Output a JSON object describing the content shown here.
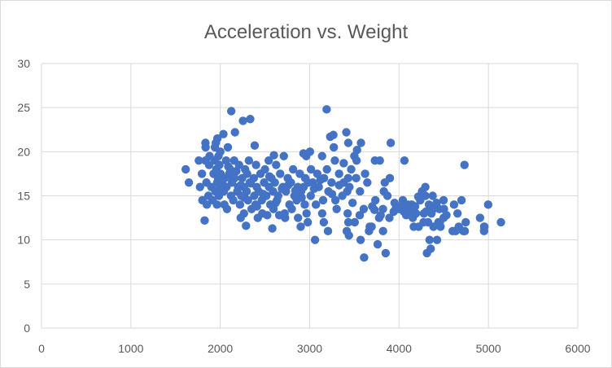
{
  "chart_data": {
    "type": "scatter",
    "title": "Acceleration vs. Weight",
    "xlabel": "",
    "ylabel": "",
    "xlim": [
      0,
      6000
    ],
    "ylim": [
      0,
      30
    ],
    "x_ticks": [
      "0",
      "1000",
      "2000",
      "3000",
      "4000",
      "5000",
      "6000"
    ],
    "y_ticks": [
      "0",
      "5",
      "10",
      "15",
      "20",
      "25",
      "30"
    ],
    "grid": true,
    "legend": "none",
    "marker_color": "#4472C4",
    "points": [
      [
        1613,
        18.0
      ],
      [
        1649,
        16.5
      ],
      [
        1760,
        19.0
      ],
      [
        1773,
        16.0
      ],
      [
        1795,
        17.5
      ],
      [
        1800,
        14.5
      ],
      [
        1825,
        12.2
      ],
      [
        1834,
        21.0
      ],
      [
        1835,
        19.0
      ],
      [
        1836,
        20.5
      ],
      [
        1845,
        16.5
      ],
      [
        1850,
        14.0
      ],
      [
        1867,
        15.0
      ],
      [
        1875,
        18.5
      ],
      [
        1880,
        19.5
      ],
      [
        1900,
        16.0
      ],
      [
        1915,
        14.5
      ],
      [
        1925,
        17.5
      ],
      [
        1937,
        19.0
      ],
      [
        1940,
        20.5
      ],
      [
        1945,
        15.5
      ],
      [
        1950,
        21.0
      ],
      [
        1955,
        18.0
      ],
      [
        1963,
        14.0
      ],
      [
        1965,
        16.5
      ],
      [
        1968,
        21.5
      ],
      [
        1975,
        17.0
      ],
      [
        1980,
        19.5
      ],
      [
        1985,
        15.0
      ],
      [
        1990,
        18.5
      ],
      [
        1995,
        16.0
      ],
      [
        2000,
        20.0
      ],
      [
        2003,
        17.5
      ],
      [
        2020,
        16.5
      ],
      [
        2035,
        22.0
      ],
      [
        2040,
        15.5
      ],
      [
        2045,
        14.0
      ],
      [
        2050,
        17.0
      ],
      [
        2065,
        19.0
      ],
      [
        2070,
        16.0
      ],
      [
        2075,
        13.5
      ],
      [
        2085,
        20.5
      ],
      [
        2100,
        17.5
      ],
      [
        2110,
        18.0
      ],
      [
        2120,
        15.0
      ],
      [
        2123,
        24.6
      ],
      [
        2130,
        16.5
      ],
      [
        2145,
        14.5
      ],
      [
        2155,
        19.0
      ],
      [
        2160,
        17.0
      ],
      [
        2164,
        22.2
      ],
      [
        2190,
        15.5
      ],
      [
        2200,
        16.0
      ],
      [
        2210,
        18.5
      ],
      [
        2220,
        14.0
      ],
      [
        2228,
        12.5
      ],
      [
        2234,
        15.0
      ],
      [
        2245,
        17.0
      ],
      [
        2254,
        23.5
      ],
      [
        2264,
        16.0
      ],
      [
        2265,
        13.0
      ],
      [
        2278,
        18.0
      ],
      [
        2288,
        11.6
      ],
      [
        2295,
        15.5
      ],
      [
        2300,
        17.5
      ],
      [
        2310,
        14.5
      ],
      [
        2320,
        19.0
      ],
      [
        2330,
        16.5
      ],
      [
        2335,
        23.7
      ],
      [
        2350,
        13.5
      ],
      [
        2375,
        17.0
      ],
      [
        2380,
        15.0
      ],
      [
        2385,
        20.7
      ],
      [
        2395,
        14.0
      ],
      [
        2400,
        18.5
      ],
      [
        2408,
        16.0
      ],
      [
        2420,
        12.5
      ],
      [
        2430,
        15.5
      ],
      [
        2450,
        17.5
      ],
      [
        2465,
        14.5
      ],
      [
        2470,
        13.0
      ],
      [
        2490,
        16.5
      ],
      [
        2500,
        18.0
      ],
      [
        2515,
        15.0
      ],
      [
        2525,
        12.8
      ],
      [
        2542,
        19.0
      ],
      [
        2545,
        16.0
      ],
      [
        2560,
        14.0
      ],
      [
        2572,
        17.0
      ],
      [
        2582,
        11.3
      ],
      [
        2590,
        15.5
      ],
      [
        2595,
        13.5
      ],
      [
        2600,
        19.6
      ],
      [
        2610,
        16.5
      ],
      [
        2625,
        18.5
      ],
      [
        2635,
        14.5
      ],
      [
        2648,
        15.0
      ],
      [
        2660,
        12.8
      ],
      [
        2670,
        17.5
      ],
      [
        2700,
        16.0
      ],
      [
        2711,
        19.5
      ],
      [
        2720,
        13.0
      ],
      [
        2725,
        12.5
      ],
      [
        2735,
        15.5
      ],
      [
        2755,
        17.0
      ],
      [
        2774,
        14.0
      ],
      [
        2790,
        16.5
      ],
      [
        2800,
        13.5
      ],
      [
        2815,
        18.0
      ],
      [
        2830,
        15.0
      ],
      [
        2855,
        14.5
      ],
      [
        2868,
        16.0
      ],
      [
        2870,
        12.5
      ],
      [
        2890,
        17.5
      ],
      [
        2900,
        11.5
      ],
      [
        2905,
        15.5
      ],
      [
        2930,
        19.8
      ],
      [
        2933,
        16.0
      ],
      [
        2945,
        14.0
      ],
      [
        2950,
        17.0
      ],
      [
        2962,
        19.5
      ],
      [
        2965,
        13.0
      ],
      [
        2979,
        12.0
      ],
      [
        2985,
        16.5
      ],
      [
        3003,
        20.0
      ],
      [
        3012,
        15.0
      ],
      [
        3015,
        18.0
      ],
      [
        3035,
        16.5
      ],
      [
        3060,
        10.0
      ],
      [
        3070,
        14.0
      ],
      [
        3085,
        17.5
      ],
      [
        3102,
        16.0
      ],
      [
        3139,
        19.5
      ],
      [
        3140,
        13.0
      ],
      [
        3150,
        14.5
      ],
      [
        3158,
        12.0
      ],
      [
        3160,
        17.0
      ],
      [
        3190,
        24.8
      ],
      [
        3193,
        18.0
      ],
      [
        3205,
        11.0
      ],
      [
        3210,
        15.5
      ],
      [
        3230,
        21.7
      ],
      [
        3245,
        16.5
      ],
      [
        3265,
        21.9
      ],
      [
        3270,
        20.5
      ],
      [
        3282,
        19.0
      ],
      [
        3288,
        14.5
      ],
      [
        3302,
        13.5
      ],
      [
        3329,
        17.5
      ],
      [
        3365,
        15.0
      ],
      [
        3380,
        16.5
      ],
      [
        3381,
        18.7
      ],
      [
        3410,
        22.2
      ],
      [
        3415,
        11.0
      ],
      [
        3420,
        15.5
      ],
      [
        3425,
        13.0
      ],
      [
        3430,
        17.0
      ],
      [
        3432,
        21.0
      ],
      [
        3433,
        12.0
      ],
      [
        3439,
        10.5
      ],
      [
        3445,
        16.0
      ],
      [
        3465,
        18.0
      ],
      [
        3500,
        19.5
      ],
      [
        3504,
        12.0
      ],
      [
        3520,
        17.0
      ],
      [
        3525,
        19.0
      ],
      [
        3530,
        20.2
      ],
      [
        3563,
        15.5
      ],
      [
        3570,
        10.0
      ],
      [
        3574,
        21.0
      ],
      [
        3605,
        13.5
      ],
      [
        3609,
        8.0
      ],
      [
        3620,
        17.5
      ],
      [
        3645,
        16.5
      ],
      [
        3664,
        11.0
      ],
      [
        3672,
        11.5
      ],
      [
        3693,
        11.5
      ],
      [
        3725,
        13.4
      ],
      [
        3730,
        19.0
      ],
      [
        3735,
        14.5
      ],
      [
        3761,
        9.5
      ],
      [
        3777,
        12.5
      ],
      [
        3785,
        19.0
      ],
      [
        3794,
        12.8
      ],
      [
        3820,
        13.5
      ],
      [
        3821,
        11.0
      ],
      [
        3830,
        15.5
      ],
      [
        3840,
        16.5
      ],
      [
        3850,
        8.5
      ],
      [
        3870,
        15.0
      ],
      [
        3892,
        12.5
      ],
      [
        3897,
        17.0
      ],
      [
        3907,
        21.0
      ],
      [
        3940,
        13.2
      ],
      [
        3962,
        13.5
      ],
      [
        4000,
        13.5
      ],
      [
        4036,
        14.0
      ],
      [
        4042,
        14.5
      ],
      [
        4054,
        13.2
      ],
      [
        4060,
        19.0
      ],
      [
        4082,
        13.0
      ],
      [
        4096,
        13.0
      ],
      [
        4098,
        14.0
      ],
      [
        4100,
        13.0
      ],
      [
        4129,
        13.0
      ],
      [
        4135,
        13.5
      ],
      [
        4140,
        13.7
      ],
      [
        4141,
        14.0
      ],
      [
        4154,
        12.5
      ],
      [
        4165,
        11.5
      ],
      [
        4190,
        13.0
      ],
      [
        4215,
        14.9
      ],
      [
        4220,
        11.5
      ],
      [
        4237,
        14.5
      ],
      [
        4257,
        15.5
      ],
      [
        4274,
        12.0
      ],
      [
        4278,
        13.0
      ],
      [
        4294,
        16.0
      ],
      [
        4295,
        15.0
      ],
      [
        4312,
        8.5
      ],
      [
        4325,
        12.0
      ],
      [
        4335,
        14.0
      ],
      [
        4341,
        10.0
      ],
      [
        4354,
        9.0
      ],
      [
        4363,
        13.0
      ],
      [
        4376,
        15.0
      ],
      [
        4382,
        13.5
      ],
      [
        4385,
        11.5
      ],
      [
        4425,
        10.0
      ],
      [
        4440,
        12.0
      ],
      [
        4450,
        13.5
      ],
      [
        4456,
        12.0
      ],
      [
        4464,
        11.5
      ],
      [
        4498,
        14.5
      ],
      [
        4499,
        12.5
      ],
      [
        4502,
        13.5
      ],
      [
        4600,
        11.0
      ],
      [
        4615,
        14.0
      ],
      [
        4633,
        11.0
      ],
      [
        4654,
        13.0
      ],
      [
        4668,
        11.5
      ],
      [
        4699,
        14.5
      ],
      [
        4720,
        11.0
      ],
      [
        4732,
        18.5
      ],
      [
        4735,
        11.0
      ],
      [
        4746,
        12.0
      ],
      [
        4906,
        12.5
      ],
      [
        4951,
        11.0
      ],
      [
        4952,
        11.5
      ],
      [
        4955,
        11.5
      ],
      [
        4997,
        14.0
      ],
      [
        5140,
        12.0
      ],
      [
        2005,
        15.8
      ],
      [
        2090,
        18.3
      ],
      [
        2140,
        16.8
      ],
      [
        2180,
        17.8
      ],
      [
        2230,
        16.2
      ],
      [
        2270,
        14.8
      ],
      [
        2340,
        16.4
      ],
      [
        2410,
        13.8
      ],
      [
        2480,
        15.2
      ],
      [
        2550,
        17.2
      ],
      [
        2620,
        14.2
      ],
      [
        2690,
        15.8
      ],
      [
        2760,
        16.2
      ],
      [
        2840,
        15.6
      ],
      [
        2910,
        14.8
      ],
      [
        3050,
        15.8
      ],
      [
        3120,
        16.8
      ],
      [
        3250,
        15.2
      ],
      [
        3330,
        16.2
      ],
      [
        3480,
        14.2
      ],
      [
        3560,
        12.8
      ],
      [
        3700,
        13.8
      ],
      [
        3950,
        14.2
      ],
      [
        4080,
        12.8
      ],
      [
        4180,
        13.8
      ],
      [
        4300,
        13.2
      ],
      [
        4420,
        14.2
      ],
      [
        4530,
        12.8
      ]
    ]
  }
}
